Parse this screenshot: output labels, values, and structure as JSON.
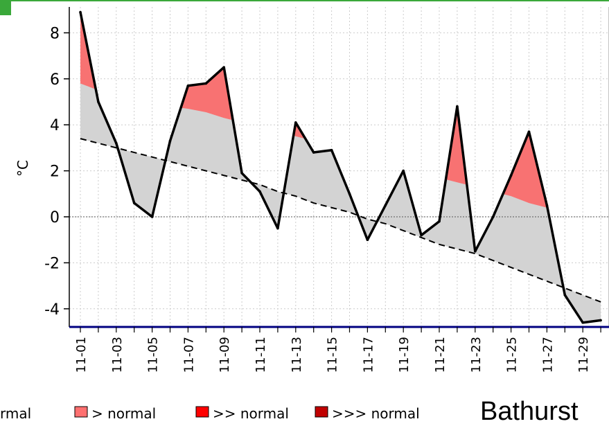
{
  "chart_data": {
    "type": "line",
    "ylabel": "°C",
    "ylim": [
      -4.9,
      9.2
    ],
    "yticks": [
      8,
      6,
      4,
      2,
      0,
      -2,
      -4
    ],
    "ytick_labels": [
      "8",
      "6",
      "4",
      "2",
      "0",
      "-2",
      "-4"
    ],
    "x_day_range": [
      1,
      30
    ],
    "xtick_labels": [
      "11-01",
      "11-03",
      "11-05",
      "11-07",
      "11-09",
      "11-11",
      "11-13",
      "11-15",
      "11-17",
      "11-19",
      "11-21",
      "11-23",
      "11-25",
      "11-27",
      "11-29"
    ],
    "grid": true,
    "series": [
      {
        "key": "observed",
        "days": [
          1,
          2,
          3,
          4,
          5,
          6,
          7,
          8,
          9,
          10,
          11,
          12,
          13,
          14,
          15,
          16,
          17,
          18,
          19,
          20,
          21,
          22,
          23,
          24,
          25,
          26,
          27,
          28,
          29,
          30
        ],
        "values": [
          8.9,
          5.0,
          3.2,
          0.6,
          0.0,
          3.3,
          5.7,
          5.8,
          6.5,
          1.9,
          1.1,
          -0.5,
          4.1,
          2.8,
          2.9,
          1.0,
          -1.0,
          0.5,
          2.0,
          -0.8,
          -0.2,
          4.8,
          -1.5,
          0.0,
          1.8,
          3.7,
          0.5,
          -3.4,
          -4.6,
          -4.5
        ]
      },
      {
        "key": "normal",
        "days": [
          1,
          2,
          3,
          4,
          5,
          6,
          7,
          8,
          9,
          10,
          11,
          12,
          13,
          14,
          15,
          16,
          17,
          18,
          19,
          20,
          21,
          22,
          23,
          24,
          25,
          26,
          27,
          28,
          29,
          30
        ],
        "values": [
          3.4,
          3.2,
          3.0,
          2.8,
          2.6,
          2.4,
          2.2,
          2.0,
          1.8,
          1.6,
          1.4,
          1.1,
          0.9,
          0.6,
          0.4,
          0.2,
          -0.1,
          -0.3,
          -0.6,
          -0.9,
          -1.2,
          -1.4,
          -1.6,
          -1.9,
          -2.2,
          -2.5,
          -2.8,
          -3.1,
          -3.4,
          -3.7
        ]
      },
      {
        "key": "above_normal_threshold",
        "days": [
          1,
          2,
          3,
          4,
          5,
          6,
          7,
          8,
          9,
          10,
          11,
          12,
          13,
          14,
          15,
          16,
          17,
          18,
          19,
          20,
          21,
          22,
          23,
          24,
          25,
          26,
          27,
          28,
          29,
          30
        ],
        "values": [
          5.8,
          5.5,
          5.3,
          5.1,
          4.9,
          4.8,
          4.7,
          4.55,
          4.3,
          4.1,
          3.9,
          3.7,
          3.5,
          3.3,
          3.1,
          2.8,
          2.6,
          2.3,
          2.1,
          1.9,
          1.7,
          1.5,
          1.3,
          1.1,
          0.9,
          0.6,
          0.4,
          0.2,
          0.0,
          -0.2
        ]
      }
    ],
    "zero_line": true,
    "legend": {
      "placement": "bottom",
      "items": [
        {
          "label": "rmal",
          "color": "#ffffff"
        },
        {
          "label": "> normal",
          "color": "#ff7070"
        },
        {
          "label": ">> normal",
          "color": "#ff0000"
        },
        {
          "label": ">>> normal",
          "color": "#c00000"
        }
      ]
    },
    "station": "Bathurst",
    "colors": {
      "between": "#d3d3d3",
      "above": "#f87272",
      "line": "#000000",
      "frame_top": "#3aa83a",
      "axis_bottom": "#000080"
    }
  }
}
